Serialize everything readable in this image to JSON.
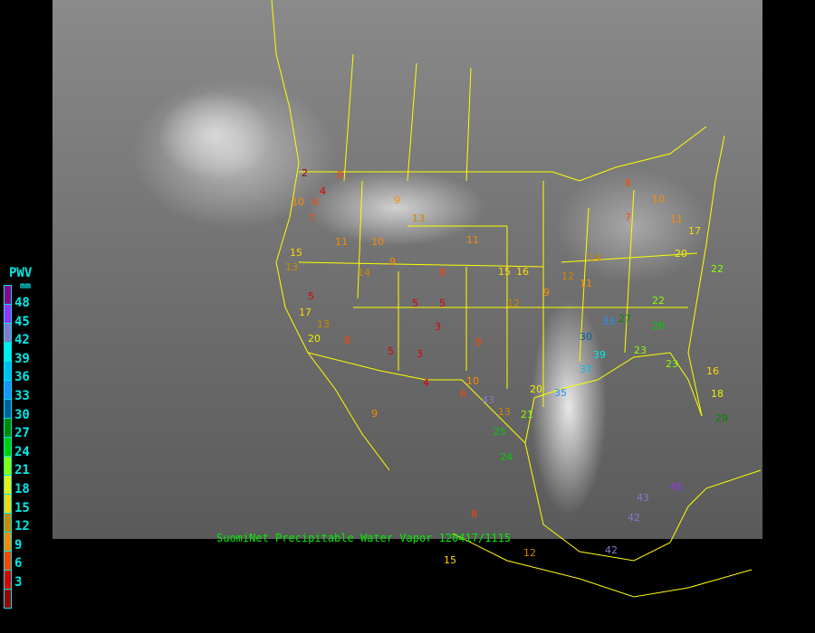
{
  "caption": "SuomiNet Precipitable Water Vapor 120417/1115",
  "legend": {
    "title": "PWV",
    "unit": "mm",
    "ticks": [
      "48",
      "45",
      "42",
      "39",
      "36",
      "33",
      "30",
      "27",
      "24",
      "21",
      "18",
      "15",
      "12",
      "9",
      "6",
      "3"
    ],
    "colors": [
      "#8b008b",
      "#9933ff",
      "#8877cc",
      "#00eeee",
      "#00bbee",
      "#1e90ff",
      "#005f9f",
      "#008800",
      "#00cc00",
      "#88ff00",
      "#eeee00",
      "#ffd700",
      "#cc8800",
      "#ff8800",
      "#ff4400",
      "#dd0000",
      "#990000"
    ]
  },
  "stations": [
    "2",
    "4",
    "8",
    "6",
    "10",
    "7",
    "9",
    "13",
    "13",
    "5",
    "15",
    "11",
    "10",
    "14",
    "9",
    "8",
    "17",
    "13",
    "5",
    "3",
    "8",
    "20",
    "12",
    "9",
    "11",
    "5",
    "5",
    "3",
    "4",
    "10",
    "8",
    "6",
    "13",
    "15",
    "16",
    "12",
    "14",
    "20",
    "23",
    "21",
    "25",
    "24",
    "35",
    "30",
    "33",
    "27",
    "23",
    "37",
    "39",
    "26",
    "22",
    "20",
    "17",
    "10",
    "8",
    "7",
    "11",
    "16",
    "18",
    "22",
    "29",
    "43",
    "42",
    "45",
    "43",
    "42",
    "12",
    "8",
    "9",
    "15",
    "11"
  ]
}
